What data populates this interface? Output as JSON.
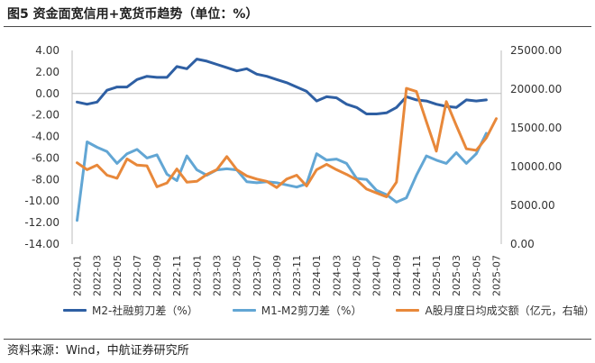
{
  "figure": {
    "title": "图5 资金面宽信用+宽货币趋势（单位：%）",
    "source": "资料来源：Wind，中航证券研究所"
  },
  "chart_data": {
    "type": "line",
    "x": [
      "2022-01",
      "2022-02",
      "2022-03",
      "2022-04",
      "2022-05",
      "2022-06",
      "2022-07",
      "2022-08",
      "2022-09",
      "2022-10",
      "2022-11",
      "2022-12",
      "2023-01",
      "2023-02",
      "2023-03",
      "2023-04",
      "2023-05",
      "2023-06",
      "2023-07",
      "2023-08",
      "2023-09",
      "2023-10",
      "2023-11",
      "2023-12",
      "2024-01",
      "2024-02",
      "2024-03",
      "2024-04",
      "2024-05",
      "2024-06",
      "2024-07",
      "2024-08",
      "2024-09",
      "2024-10",
      "2024-11",
      "2024-12",
      "2025-01",
      "2025-02",
      "2025-03",
      "2025-04",
      "2025-05",
      "2025-06",
      "2025-07"
    ],
    "x_tick_labels": [
      "2022-01",
      "2022-03",
      "2022-05",
      "2022-07",
      "2022-09",
      "2022-11",
      "2023-01",
      "2023-03",
      "2023-05",
      "2023-07",
      "2023-09",
      "2023-11",
      "2024-01",
      "2024-03",
      "2024-05",
      "2024-07",
      "2024-09",
      "2024-11",
      "2025-01",
      "2025-03",
      "2025-05",
      "2025-07"
    ],
    "y_left": {
      "min": -14,
      "max": 4,
      "step": 2,
      "tick_labels": [
        "4.00",
        "2.00",
        "0.00",
        "-2.00",
        "-4.00",
        "-6.00",
        "-8.00",
        "-10.00",
        "-12.00",
        "-14.00"
      ]
    },
    "y_right": {
      "min": 0,
      "max": 25000,
      "step": 5000,
      "tick_labels": [
        "25000.00",
        "20000.00",
        "15000.00",
        "10000.00",
        "5000.00",
        "0.00"
      ]
    },
    "grid": false,
    "legend_position": "bottom",
    "series": [
      {
        "name": "M2-社融剪刀差（%）",
        "axis": "left",
        "color": "#2e5fa3",
        "values": [
          -0.8,
          -1.0,
          -0.8,
          0.3,
          0.6,
          0.6,
          1.3,
          1.6,
          1.5,
          1.5,
          2.5,
          2.3,
          3.2,
          3.0,
          2.7,
          2.4,
          2.1,
          2.3,
          1.8,
          1.6,
          1.3,
          1.0,
          0.6,
          0.2,
          -0.7,
          -0.3,
          -0.4,
          -1.0,
          -1.3,
          -1.9,
          -1.9,
          -1.8,
          -1.3,
          -0.3,
          -0.6,
          -0.7,
          -1.0,
          -1.2,
          -1.3,
          -0.6,
          -0.7,
          -0.6,
          null
        ]
      },
      {
        "name": "M1-M2剪刀差（%）",
        "axis": "left",
        "color": "#62a6d4",
        "values": [
          -11.8,
          -4.5,
          -5.0,
          -5.4,
          -6.5,
          -5.6,
          -5.2,
          -6.0,
          -5.7,
          -7.5,
          -8.1,
          -5.8,
          -7.1,
          -7.6,
          -7.1,
          -7.0,
          -7.1,
          -8.2,
          -8.3,
          -8.2,
          -8.3,
          -8.5,
          -8.7,
          -8.4,
          -5.6,
          -6.2,
          -6.1,
          -6.5,
          -7.9,
          -8.0,
          -9.0,
          -9.4,
          -10.1,
          -9.7,
          -7.6,
          -5.8,
          -6.2,
          -6.5,
          -5.5,
          -6.5,
          -5.6,
          -3.7,
          null
        ]
      },
      {
        "name": "A股月度日均成交额（亿元，右轴）",
        "axis": "right",
        "color": "#e8883a",
        "values": [
          10500,
          9600,
          10200,
          8900,
          8500,
          11000,
          10200,
          10100,
          7400,
          7900,
          9700,
          8000,
          8100,
          9000,
          9600,
          11300,
          9600,
          8800,
          8400,
          8100,
          7300,
          8400,
          8900,
          7500,
          9600,
          10300,
          9600,
          9000,
          8300,
          7100,
          6600,
          6100,
          8000,
          20100,
          19700,
          15800,
          12000,
          18400,
          15300,
          12300,
          12100,
          13700,
          16200
        ]
      }
    ]
  }
}
